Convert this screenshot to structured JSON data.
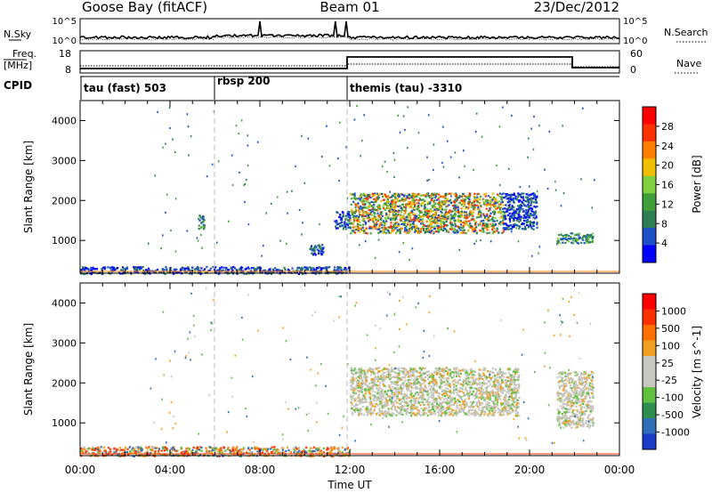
{
  "header": {
    "station": "Goose Bay (fitACF)",
    "beam": "Beam 01",
    "date": "23/Dec/2012"
  },
  "noise_panel": {
    "left_label": "N.Sky",
    "right_label": "N.Search",
    "left_ticks": [
      "10^5",
      "10^0"
    ],
    "right_ticks": [
      "10^5",
      "10^0"
    ]
  },
  "freq_panel": {
    "left_label_1": "Freq.",
    "left_label_2": "[MHz]",
    "right_label": "Nave",
    "left_ticks": [
      "18",
      "8"
    ],
    "right_ticks": [
      "60",
      "0"
    ]
  },
  "cpid_panel": {
    "label": "CPID",
    "segments": [
      {
        "label": "tau (fast) 503",
        "start_hour": 0
      },
      {
        "label": "rbsp 200",
        "start_hour": 6
      },
      {
        "label": "themis (tau) -3310",
        "start_hour": 12
      }
    ]
  },
  "chart_data": [
    {
      "type": "heatmap",
      "name": "power",
      "xlabel": "",
      "ylabel": "Slant Range [km]",
      "xlim": [
        0,
        24
      ],
      "ylim": [
        180,
        4500
      ],
      "yticks": [
        "1000",
        "2000",
        "3000",
        "4000"
      ],
      "colorbar": {
        "label": "Power [dB]",
        "tick_labels": [
          "4",
          "8",
          "12",
          "16",
          "20",
          "24",
          "28"
        ],
        "colors": [
          "#0000ff",
          "#1e50c8",
          "#2f7f55",
          "#3fa03a",
          "#80d040",
          "#f0c000",
          "#ff8000",
          "#ff3000",
          "#ff0000"
        ]
      },
      "regions": [
        {
          "x": [
            0,
            12
          ],
          "y": [
            180,
            360
          ],
          "level": "low"
        },
        {
          "x": [
            5.2,
            5.5
          ],
          "y": [
            1300,
            1650
          ],
          "level": "mid"
        },
        {
          "x": [
            10.2,
            10.8
          ],
          "y": [
            650,
            950
          ],
          "level": "low"
        },
        {
          "x": [
            11.3,
            12.0
          ],
          "y": [
            1300,
            1750
          ],
          "level": "low"
        },
        {
          "x": [
            12.0,
            18.8
          ],
          "y": [
            1200,
            2200
          ],
          "level": "high"
        },
        {
          "x": [
            18.8,
            20.3
          ],
          "y": [
            1300,
            2200
          ],
          "level": "low"
        },
        {
          "x": [
            21.2,
            22.8
          ],
          "y": [
            950,
            1200
          ],
          "level": "mid"
        }
      ]
    },
    {
      "type": "heatmap",
      "name": "velocity",
      "xlabel": "Time UT",
      "ylabel": "Slant Range [km]",
      "xlim": [
        0,
        24
      ],
      "ylim": [
        180,
        4500
      ],
      "xticks": [
        "00:00",
        "04:00",
        "08:00",
        "12:00",
        "16:00",
        "20:00",
        "00:00"
      ],
      "yticks": [
        "1000",
        "2000",
        "3000",
        "4000"
      ],
      "colorbar": {
        "label": "Velocity [m s^-1]",
        "tick_labels": [
          "1000",
          "500",
          "100",
          "25",
          "-25",
          "-100",
          "-500",
          "-1000"
        ],
        "colors": [
          "#1a3cc8",
          "#2f6fb8",
          "#2f8f50",
          "#60c040",
          "#c8c8c0",
          "#c8c8c0",
          "#f0a020",
          "#ff7000",
          "#ff3000",
          "#ff0000"
        ]
      },
      "regions": [
        {
          "x": [
            0,
            12
          ],
          "y": [
            180,
            420
          ],
          "level": "mixed"
        },
        {
          "x": [
            12.0,
            19.5
          ],
          "y": [
            1200,
            2400
          ],
          "level": "ground"
        },
        {
          "x": [
            21.2,
            22.8
          ],
          "y": [
            900,
            2300
          ],
          "level": "ground"
        }
      ]
    }
  ]
}
